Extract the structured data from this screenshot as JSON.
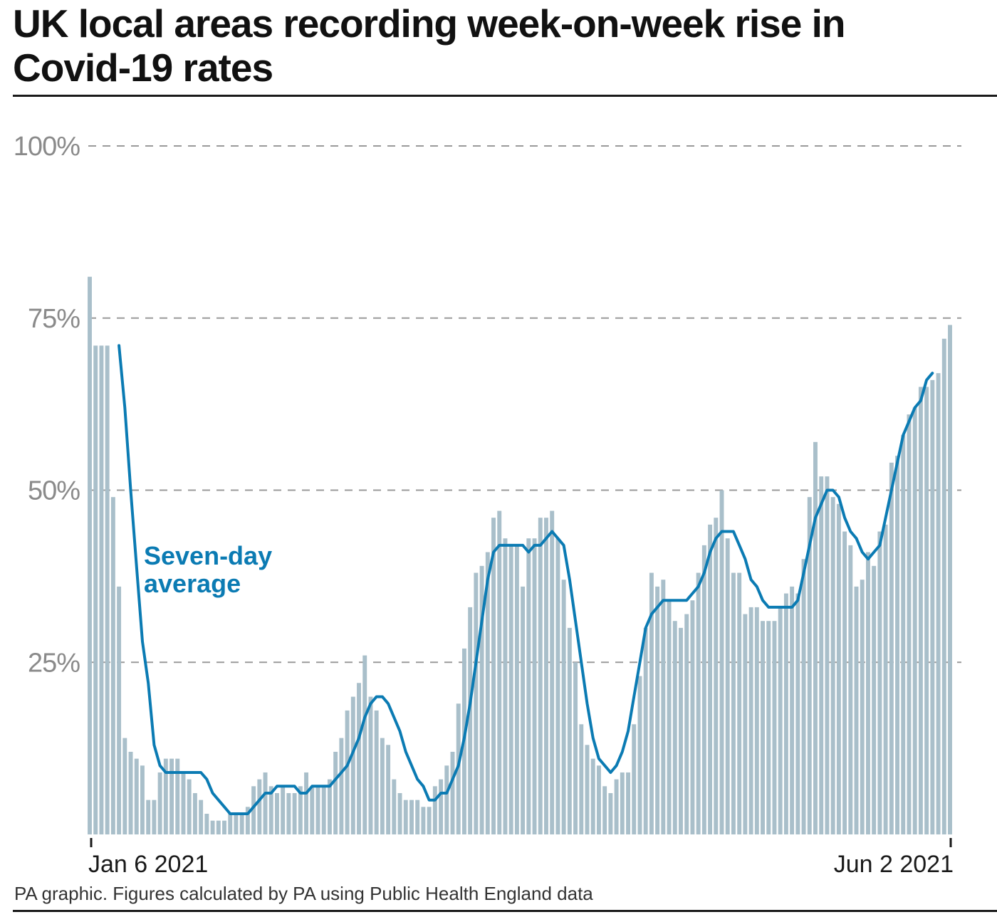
{
  "title": "UK local areas recording week-on-week rise in Covid-19 rates",
  "source": "PA graphic. Figures calculated by PA using Public Health England data",
  "colors": {
    "bars": "#a9bfca",
    "line": "#0b7bb3",
    "grid": "#9a9a9a",
    "text": "#1a1a1a"
  },
  "chart_data": {
    "type": "bar",
    "title": "UK local areas recording week-on-week rise in Covid-19 rates",
    "x_start": "Jan 6 2021",
    "x_end": "Jun 2 2021",
    "x_tick_labels": [
      "Jan 6 2021",
      "Jun 2 2021"
    ],
    "ylim": [
      0,
      100
    ],
    "y_ticks": [
      25,
      50,
      75,
      100
    ],
    "y_tick_labels": [
      "25%",
      "50%",
      "75%",
      "100%"
    ],
    "grid": true,
    "annotation": [
      "Seven-day",
      "average"
    ],
    "series": [
      {
        "type": "bar",
        "values": [
          81,
          71,
          71,
          71,
          49,
          36,
          14,
          12,
          11,
          10,
          5,
          5,
          9,
          11,
          11,
          11,
          9,
          8,
          6,
          5,
          3,
          2,
          2,
          2,
          3,
          3,
          3,
          4,
          7,
          8,
          9,
          7,
          6,
          7,
          6,
          6,
          7,
          9,
          7,
          7,
          7,
          8,
          12,
          14,
          18,
          20,
          22,
          26,
          20,
          18,
          14,
          13,
          8,
          6,
          5,
          5,
          5,
          4,
          4,
          7,
          8,
          10,
          12,
          19,
          27,
          33,
          38,
          39,
          41,
          46,
          47,
          43,
          42,
          42,
          36,
          43,
          43,
          46,
          46,
          47,
          43,
          37,
          30,
          25,
          16,
          13,
          11,
          10,
          7,
          6,
          8,
          9,
          9,
          16,
          23,
          30,
          38,
          36,
          37,
          34,
          31,
          30,
          32,
          34,
          38,
          42,
          45,
          46,
          50,
          43,
          38,
          38,
          32,
          33,
          33,
          31,
          31,
          31,
          33,
          35,
          36,
          35,
          40,
          49,
          57,
          52,
          52,
          49,
          48,
          44,
          42,
          36,
          37,
          41,
          39,
          44,
          45,
          54,
          55,
          58,
          61,
          62,
          65,
          65,
          66,
          67,
          72,
          74
        ]
      },
      {
        "type": "line",
        "values": [
          null,
          null,
          null,
          null,
          null,
          71,
          62,
          50,
          39,
          28,
          22,
          13,
          10,
          9,
          9,
          9,
          9,
          9,
          9,
          9,
          8,
          6,
          5,
          4,
          3,
          3,
          3,
          3,
          4,
          5,
          6,
          6,
          7,
          7,
          7,
          7,
          6,
          6,
          7,
          7,
          7,
          7,
          8,
          9,
          10,
          12,
          14,
          17,
          19,
          20,
          20,
          19,
          17,
          15,
          12,
          10,
          8,
          7,
          5,
          5,
          6,
          6,
          8,
          10,
          14,
          19,
          25,
          31,
          37,
          41,
          42,
          42,
          42,
          42,
          42,
          41,
          42,
          42,
          43,
          44,
          43,
          42,
          37,
          31,
          25,
          19,
          14,
          11,
          10,
          9,
          10,
          12,
          15,
          20,
          25,
          30,
          32,
          33,
          34,
          34,
          34,
          34,
          34,
          35,
          36,
          38,
          41,
          43,
          44,
          44,
          44,
          42,
          40,
          37,
          36,
          34,
          33,
          33,
          33,
          33,
          33,
          34,
          38,
          42,
          46,
          48,
          50,
          50,
          49,
          46,
          44,
          43,
          41,
          40,
          41,
          42,
          46,
          50,
          54,
          58,
          60,
          62,
          63,
          66,
          67
        ]
      }
    ]
  }
}
